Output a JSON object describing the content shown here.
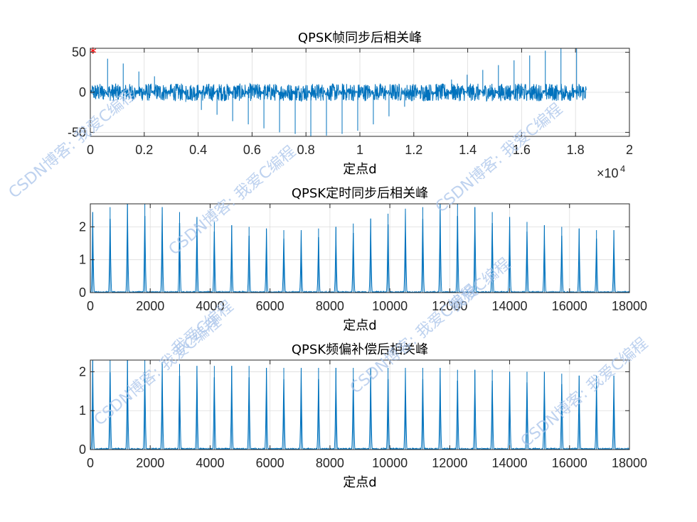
{
  "chart_data": [
    {
      "type": "line",
      "title": "QPSK帧同步后相关峰",
      "xlabel": "定点d",
      "ylabel": "",
      "x_exponent_label": "×10",
      "x_exponent_power": "4",
      "xlim": [
        0,
        20000
      ],
      "ylim": [
        -55,
        55
      ],
      "x_tick_values": [
        0,
        2000,
        4000,
        6000,
        8000,
        10000,
        12000,
        14000,
        16000,
        18000,
        20000
      ],
      "x_tick_labels": [
        "0",
        "0.2",
        "0.4",
        "0.6",
        "0.8",
        "1",
        "1.2",
        "1.4",
        "1.6",
        "1.8",
        "2"
      ],
      "y_tick_values": [
        -50,
        0,
        50
      ],
      "y_tick_labels": [
        "-50",
        "0",
        "50"
      ],
      "grid": true,
      "signal_end": 18400,
      "spike_positions": [
        640,
        1220,
        1800,
        2380,
        2960,
        3540,
        4120,
        4700,
        5280,
        5860,
        6440,
        7020,
        7600,
        8180,
        8760,
        9340,
        9920,
        10500,
        11080,
        11660,
        12240,
        12820,
        13400,
        13980,
        14560,
        15140,
        15720,
        16300,
        16880,
        17460,
        18040
      ],
      "spike_values": [
        42,
        36,
        26,
        20,
        -5,
        -12,
        -22,
        -28,
        -36,
        -40,
        -45,
        -50,
        -52,
        -55,
        -54,
        -52,
        -48,
        -40,
        -30,
        -18,
        -8,
        10,
        16,
        22,
        28,
        34,
        40,
        46,
        52,
        55,
        58
      ],
      "marker": {
        "x": 100,
        "y": 48,
        "symbol": "*",
        "color": "#ff0000"
      }
    },
    {
      "type": "line",
      "title": "QPSK定时同步后相关峰",
      "xlabel": "定点d",
      "ylabel": "",
      "xlim": [
        0,
        18000
      ],
      "ylim": [
        0,
        2.7
      ],
      "x_tick_values": [
        0,
        2000,
        4000,
        6000,
        8000,
        10000,
        12000,
        14000,
        16000,
        18000
      ],
      "x_tick_labels": [
        "0",
        "2000",
        "4000",
        "6000",
        "8000",
        "10000",
        "12000",
        "14000",
        "16000",
        "18000"
      ],
      "y_tick_values": [
        0,
        1,
        2
      ],
      "y_tick_labels": [
        "0",
        "1",
        "2"
      ],
      "grid": true,
      "peak_positions": [
        80,
        660,
        1240,
        1820,
        2400,
        2980,
        3560,
        4140,
        4720,
        5300,
        5880,
        6460,
        7040,
        7620,
        8200,
        8780,
        9360,
        9940,
        10520,
        11100,
        11680,
        12260,
        12840,
        13420,
        14000,
        14580,
        15160,
        15740,
        16320,
        16900,
        17480
      ],
      "peak_values": [
        2.45,
        2.6,
        2.7,
        2.7,
        2.6,
        2.45,
        2.3,
        2.15,
        2.05,
        2.0,
        1.95,
        1.9,
        1.9,
        1.95,
        2.0,
        2.1,
        2.25,
        2.4,
        2.55,
        2.6,
        2.7,
        2.7,
        2.6,
        2.45,
        2.3,
        2.15,
        2.05,
        2.0,
        1.95,
        1.9,
        1.9
      ]
    },
    {
      "type": "line",
      "title": "QPSK频偏补偿后相关峰",
      "xlabel": "定点d",
      "ylabel": "",
      "xlim": [
        0,
        18000
      ],
      "ylim": [
        0,
        2.3
      ],
      "x_tick_values": [
        0,
        2000,
        4000,
        6000,
        8000,
        10000,
        12000,
        14000,
        16000,
        18000
      ],
      "x_tick_labels": [
        "0",
        "2000",
        "4000",
        "6000",
        "8000",
        "10000",
        "12000",
        "14000",
        "16000",
        "18000"
      ],
      "y_tick_values": [
        0,
        1,
        2
      ],
      "y_tick_labels": [
        "0",
        "1",
        "2"
      ],
      "grid": true,
      "peak_positions": [
        80,
        660,
        1240,
        1820,
        2400,
        2980,
        3560,
        4140,
        4720,
        5300,
        5880,
        6460,
        7040,
        7620,
        8200,
        8780,
        9360,
        9940,
        10520,
        11100,
        11680,
        12260,
        12840,
        13420,
        14000,
        14580,
        15160,
        15740,
        16320,
        16900,
        17480
      ],
      "peak_values": [
        2.3,
        2.3,
        2.3,
        2.3,
        2.25,
        2.2,
        2.15,
        2.15,
        2.15,
        2.15,
        2.1,
        2.1,
        2.1,
        2.1,
        2.1,
        2.1,
        2.1,
        2.1,
        2.1,
        2.1,
        2.1,
        2.05,
        2.05,
        2.05,
        2.0,
        2.0,
        2.0,
        1.95,
        1.9,
        1.9,
        1.9
      ]
    }
  ],
  "watermarks": [
    "CSDN博客: 我爱C编程",
    "CSDN博客: 我爱C编程",
    "CSDN博客: 我爱C编程",
    "我爱C编程",
    "CSDN博客: 我爱C编程",
    "CSDN博客: 我爱C编程",
    "CSDN博客: 我爱C编程",
    "我爱C编程"
  ],
  "colors": {
    "series": "#0072bd",
    "marker": "#ff0000",
    "watermark": "#a9c4ea"
  }
}
